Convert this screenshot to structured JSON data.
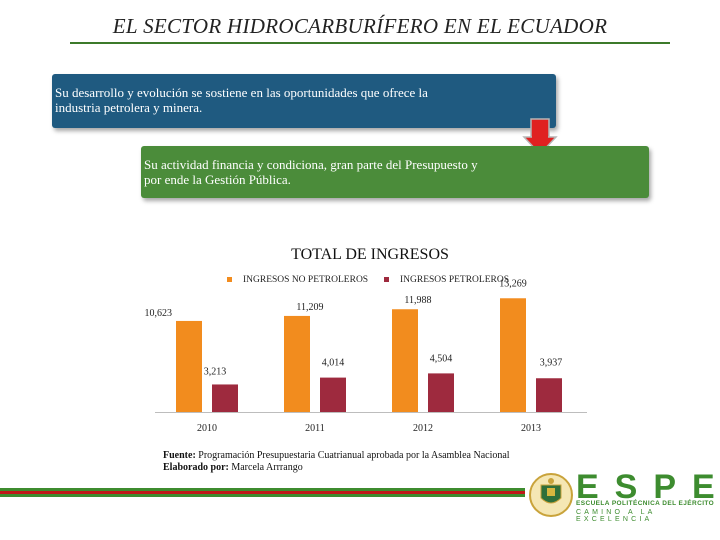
{
  "header": {
    "title": "EL SECTOR HIDROCARBURÍFERO EN EL ECUADOR"
  },
  "boxes": {
    "box1_line1": "Su desarrollo y evolución se sostiene en las oportunidades que ofrece la",
    "box1_line2": "industria petrolera y minera.",
    "box2_line1": "Su actividad financia y condiciona, gran parte del Presupuesto y",
    "box2_line2": "por ende la Gestión Pública."
  },
  "colors": {
    "box1": "#1f5a80",
    "box2": "#4b8c3a",
    "arrow": "#e02020",
    "non_oil": "#f28c1e",
    "oil": "#9e2a3e",
    "brand_green": "#3d8c2f"
  },
  "chart_data": {
    "type": "bar",
    "title": "TOTAL DE INGRESOS",
    "categories": [
      "2010",
      "2011",
      "2012",
      "2013"
    ],
    "series": [
      {
        "name": "INGRESOS NO PETROLEROS",
        "values": [
          10623,
          11209,
          11988,
          13269
        ],
        "labels": [
          "10,623",
          "11,209",
          "11,988",
          "13,269"
        ]
      },
      {
        "name": "INGRESOS PETROLEROS",
        "values": [
          3213,
          4014,
          4504,
          3937
        ],
        "labels": [
          "3,213",
          "4,014",
          "4,504",
          "3,937"
        ]
      }
    ],
    "ylim": [
      0,
      14000
    ],
    "legend": "top",
    "grid": false
  },
  "source": {
    "source_label": "Fuente:",
    "source_text": "Programación Presupuestaria Cuatrianual aprobada por la Asamblea Nacional",
    "author_label": "Elaborado por:",
    "author_text": "Marcela Arrrango"
  },
  "logo": {
    "name": "ESPE",
    "line1": "ESCUELA POLITÉCNICA DEL EJÉRCITO",
    "line2": "CAMINO A LA EXCELENCIA",
    "icon": "crest-icon"
  }
}
